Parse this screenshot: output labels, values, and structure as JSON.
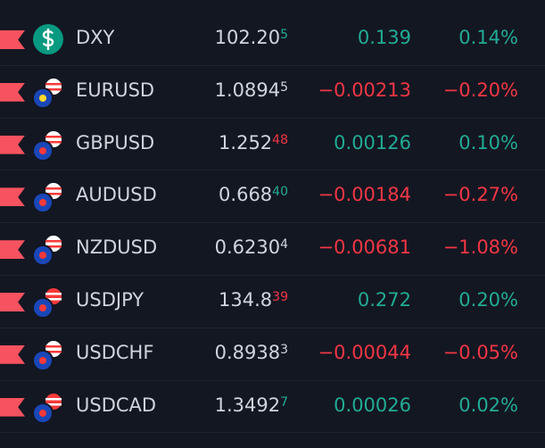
{
  "watchlist": {
    "rows": [
      {
        "symbol": "DXY",
        "icon": "dollar",
        "price": "102.20",
        "pip": "5",
        "pip_trend": "up",
        "change": "0.139",
        "change_percent": "0.14%",
        "trend": "up"
      },
      {
        "symbol": "EURUSD",
        "icon": "eu",
        "price": "1.0894",
        "pip": "5",
        "pip_trend": "flat",
        "change": "−0.00213",
        "change_percent": "−0.20%",
        "trend": "down"
      },
      {
        "symbol": "GBPUSD",
        "icon": "gb",
        "price": "1.252",
        "pip": "48",
        "pip_trend": "down",
        "change": "0.00126",
        "change_percent": "0.10%",
        "trend": "up"
      },
      {
        "symbol": "AUDUSD",
        "icon": "au",
        "price": "0.668",
        "pip": "40",
        "pip_trend": "up",
        "change": "−0.00184",
        "change_percent": "−0.27%",
        "trend": "down"
      },
      {
        "symbol": "NZDUSD",
        "icon": "nz",
        "price": "0.6230",
        "pip": "4",
        "pip_trend": "flat",
        "change": "−0.00681",
        "change_percent": "−1.08%",
        "trend": "down"
      },
      {
        "symbol": "USDJPY",
        "icon": "jp",
        "price": "134.8",
        "pip": "39",
        "pip_trend": "down",
        "change": "0.272",
        "change_percent": "0.20%",
        "trend": "up"
      },
      {
        "symbol": "USDCHF",
        "icon": "ch",
        "price": "0.8938",
        "pip": "3",
        "pip_trend": "flat",
        "change": "−0.00044",
        "change_percent": "−0.05%",
        "trend": "down"
      },
      {
        "symbol": "USDCAD",
        "icon": "ca",
        "price": "1.3492",
        "pip": "7",
        "pip_trend": "up",
        "change": "0.00026",
        "change_percent": "0.02%",
        "trend": "up"
      }
    ]
  }
}
